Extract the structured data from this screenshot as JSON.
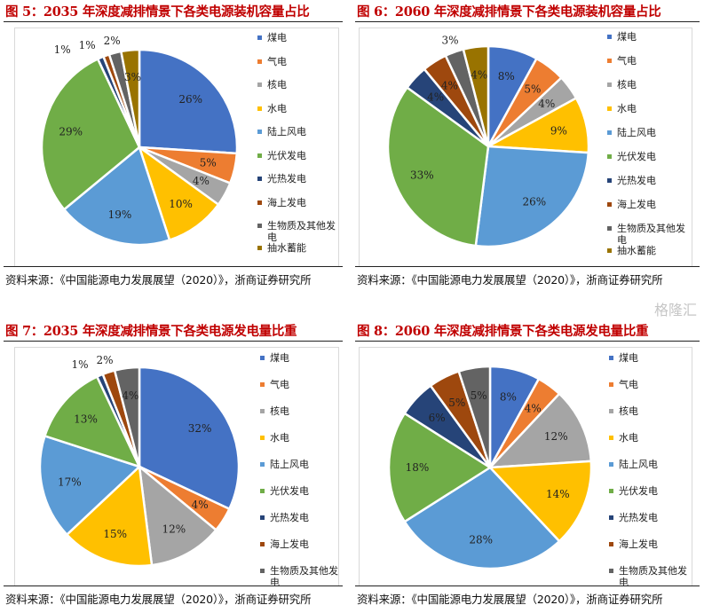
{
  "legend_colors": [
    "#4472c4",
    "#ed7d31",
    "#a5a5a5",
    "#ffc000",
    "#5b9bd5",
    "#70ad47",
    "#264478",
    "#9e480e",
    "#636363",
    "#997300"
  ],
  "source": "资料来源：《中国能源电力发展展望（2020）》，浙商证券研究所",
  "watermark": "格隆汇",
  "chart_data": [
    {
      "type": "pie",
      "title": "图 5：2035 年深度减排情景下各类电源装机容量占比",
      "categories": [
        "煤电",
        "气电",
        "核电",
        "水电",
        "陆上风电",
        "光伏发电",
        "光热发电",
        "海上发电",
        "生物质及其他发电",
        "抽水蓄能"
      ],
      "values": [
        26,
        5,
        4,
        10,
        19,
        29,
        1,
        1,
        2,
        3
      ],
      "unit": "%",
      "legend": "right"
    },
    {
      "type": "pie",
      "title": "图 6：2060 年深度减排情景下各类电源装机容量占比",
      "categories": [
        "煤电",
        "气电",
        "核电",
        "水电",
        "陆上风电",
        "光伏发电",
        "光热发电",
        "海上发电",
        "生物质及其他发电",
        "抽水蓄能"
      ],
      "values": [
        8,
        5,
        4,
        9,
        26,
        33,
        4,
        4,
        3,
        4
      ],
      "unit": "%",
      "legend": "right"
    },
    {
      "type": "pie",
      "title": "图 7：2035 年深度减排情景下各类电源发电量比重",
      "categories": [
        "煤电",
        "气电",
        "核电",
        "水电",
        "陆上风电",
        "光伏发电",
        "光热发电",
        "海上发电",
        "生物质及其他发电"
      ],
      "values": [
        32,
        4,
        12,
        15,
        17,
        13,
        1,
        2,
        4
      ],
      "unit": "%",
      "legend": "right"
    },
    {
      "type": "pie",
      "title": "图 8：2060 年深度减排情景下各类电源发电量比重",
      "categories": [
        "煤电",
        "气电",
        "核电",
        "水电",
        "陆上风电",
        "光伏发电",
        "光热发电",
        "海上发电",
        "生物质及其他发电"
      ],
      "values": [
        8,
        4,
        12,
        14,
        28,
        18,
        6,
        5,
        5
      ],
      "unit": "%",
      "legend": "right"
    }
  ]
}
